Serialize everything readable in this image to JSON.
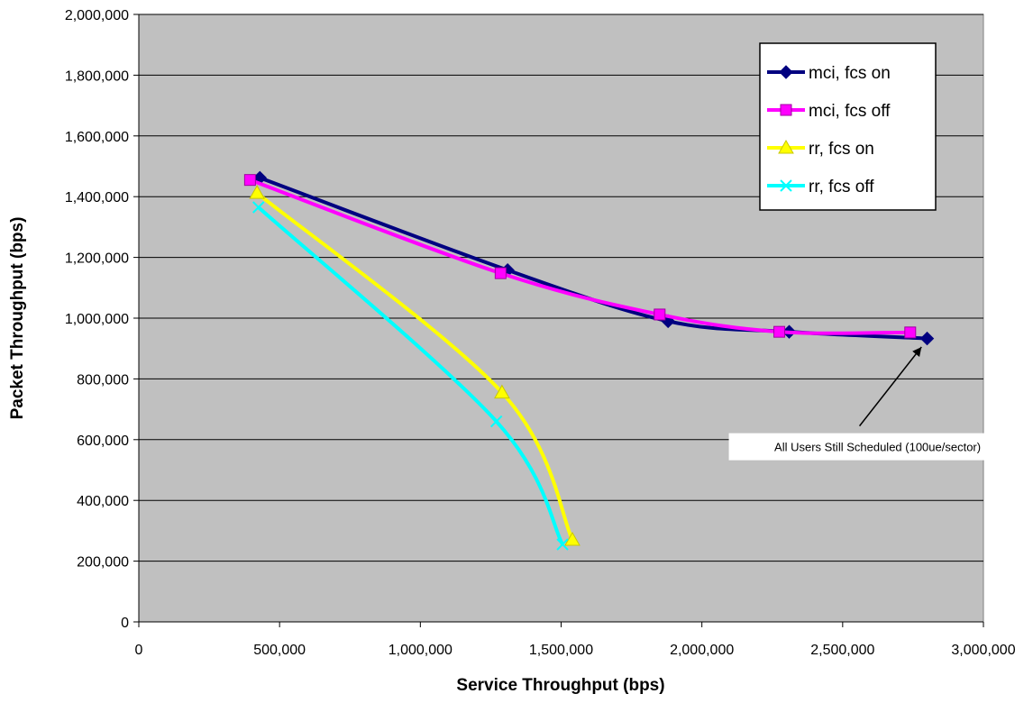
{
  "chart_data": {
    "type": "line",
    "title": "",
    "xlabel": "Service Throughput (bps)",
    "ylabel": "Packet Throughput (bps)",
    "xlim": [
      0,
      3000000
    ],
    "ylim": [
      0,
      2000000
    ],
    "x_ticks": [
      "0",
      "500,000",
      "1,000,000",
      "1,500,000",
      "2,000,000",
      "2,500,000",
      "3,000,000"
    ],
    "y_ticks": [
      "0",
      "200,000",
      "400,000",
      "600,000",
      "800,000",
      "1,000,000",
      "1,200,000",
      "1,400,000",
      "1,600,000",
      "1,800,000",
      "2,000,000"
    ],
    "grid": "horizontal",
    "plot_background": "#c0c0c0",
    "legend_position": "top-right",
    "series": [
      {
        "name": "mci, fcs on",
        "color": "#000080",
        "marker": "diamond",
        "points": [
          [
            430000,
            1462000
          ],
          [
            1310000,
            1158000
          ],
          [
            1880000,
            990000
          ],
          [
            2310000,
            955000
          ],
          [
            2800000,
            933000
          ]
        ]
      },
      {
        "name": "mci, fcs off",
        "color": "#ff00ff",
        "marker": "square",
        "points": [
          [
            395000,
            1455000
          ],
          [
            1285000,
            1148000
          ],
          [
            1850000,
            1012000
          ],
          [
            2275000,
            955000
          ],
          [
            2740000,
            953000
          ]
        ]
      },
      {
        "name": "rr, fcs on",
        "color": "#ffff00",
        "marker": "triangle",
        "points": [
          [
            420000,
            1412000
          ],
          [
            1290000,
            755000
          ],
          [
            1540000,
            270000
          ]
        ]
      },
      {
        "name": "rr, fcs off",
        "color": "#00ffff",
        "marker": "x",
        "points": [
          [
            425000,
            1365000
          ],
          [
            1270000,
            660000
          ],
          [
            1505000,
            255000
          ]
        ]
      }
    ],
    "annotations": [
      {
        "text": "All Users Still Scheduled (100ue/sector)",
        "arrow_target": [
          2780000,
          905000
        ],
        "anchor_data": [
          2560000,
          645000
        ]
      }
    ]
  }
}
